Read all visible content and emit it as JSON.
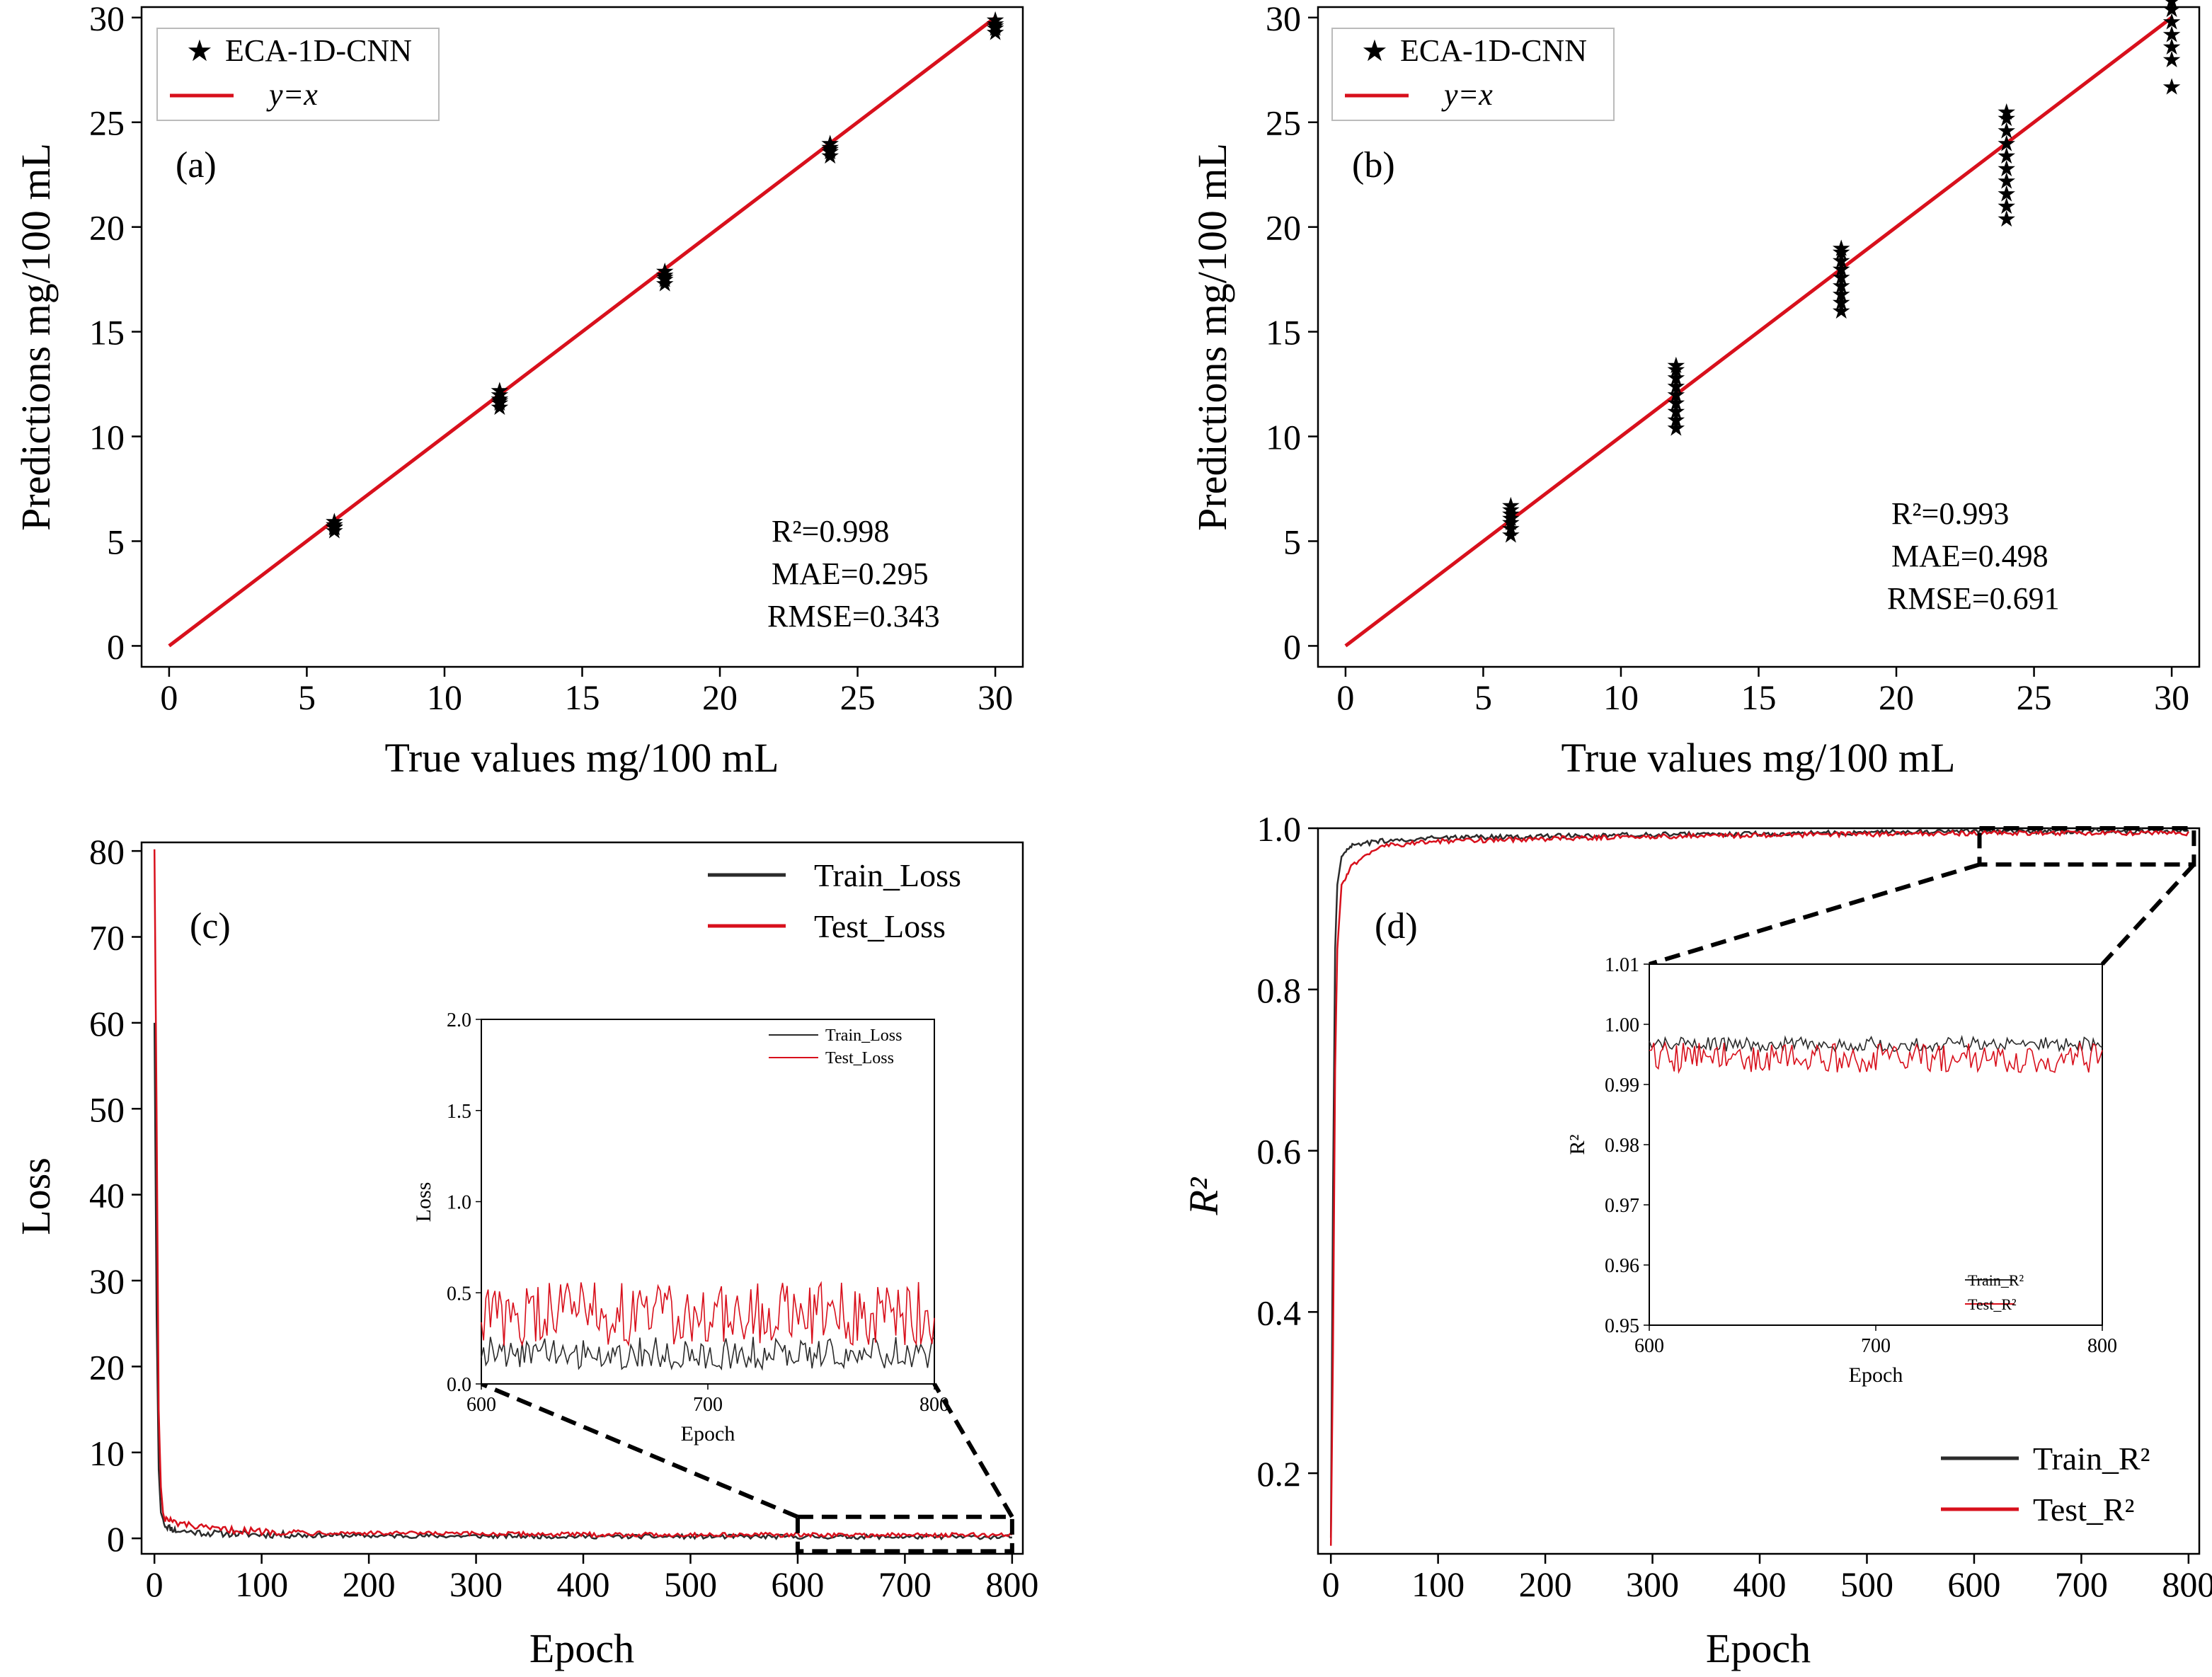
{
  "colors": {
    "scatter": "#1a7a3a",
    "identity": "#d8101c",
    "train": "#2b2b2b",
    "test": "#d8101c"
  },
  "panels": {
    "a": {
      "label": "(a)",
      "xlabel": "True values mg/100 mL",
      "ylabel": "Predictions mg/100 mL",
      "legend": {
        "scatter": "ECA-1D-CNN",
        "line": "y=x"
      },
      "stats": {
        "r2": "R²=0.998",
        "mae": "MAE=0.295",
        "rmse": "RMSE=0.343"
      }
    },
    "b": {
      "label": "(b)",
      "xlabel": "True values mg/100 mL",
      "ylabel": "Predictions mg/100 mL",
      "legend": {
        "scatter": "ECA-1D-CNN",
        "line": "y=x"
      },
      "stats": {
        "r2": "R²=0.993",
        "mae": "MAE=0.498",
        "rmse": "RMSE=0.691"
      }
    },
    "c": {
      "label": "(c)",
      "xlabel": "Epoch",
      "ylabel": "Loss",
      "legend": {
        "train": "Train_Loss",
        "test": "Test_Loss"
      },
      "inset": {
        "xlabel": "Epoch",
        "ylabel": "Loss",
        "legend": {
          "train": "Train_Loss",
          "test": "Test_Loss"
        }
      }
    },
    "d": {
      "label": "(d)",
      "xlabel": "Epoch",
      "ylabel": "R²",
      "legend": {
        "train": "Train_R²",
        "test": "Test_R²"
      },
      "inset": {
        "xlabel": "Epoch",
        "ylabel": "R²",
        "legend": {
          "train": "Train_R²",
          "test": "Test_R²"
        }
      }
    }
  },
  "chart_data": [
    {
      "type": "scatter",
      "panel": "a",
      "xlim": [
        -1,
        31
      ],
      "ylim": [
        -1,
        30.5
      ],
      "xticks": [
        0,
        5,
        10,
        15,
        20,
        25,
        30
      ],
      "yticks": [
        0,
        5,
        10,
        15,
        20,
        25,
        30
      ],
      "series": [
        {
          "name": "ECA-1D-CNN",
          "kind": "points",
          "points": [
            [
              6,
              5.5
            ],
            [
              6,
              5.65
            ],
            [
              6,
              5.8
            ],
            [
              6,
              5.95
            ],
            [
              6,
              5.7
            ],
            [
              12,
              11.4
            ],
            [
              12,
              11.6
            ],
            [
              12,
              11.8
            ],
            [
              12,
              12.0
            ],
            [
              12,
              12.2
            ],
            [
              12,
              11.7
            ],
            [
              18,
              17.3
            ],
            [
              18,
              17.5
            ],
            [
              18,
              17.7
            ],
            [
              18,
              17.9
            ],
            [
              18,
              17.6
            ],
            [
              24,
              23.4
            ],
            [
              24,
              23.6
            ],
            [
              24,
              23.8
            ],
            [
              24,
              24.0
            ],
            [
              24,
              23.7
            ],
            [
              30,
              29.3
            ],
            [
              30,
              29.5
            ],
            [
              30,
              29.7
            ],
            [
              30,
              29.9
            ],
            [
              30,
              29.6
            ]
          ]
        },
        {
          "name": "y=x",
          "kind": "line",
          "points": [
            [
              0,
              0
            ],
            [
              30,
              30
            ]
          ]
        }
      ]
    },
    {
      "type": "scatter",
      "panel": "b",
      "xlim": [
        -1,
        31
      ],
      "ylim": [
        -1,
        30.5
      ],
      "xticks": [
        0,
        5,
        10,
        15,
        20,
        25,
        30
      ],
      "yticks": [
        0,
        5,
        10,
        15,
        20,
        25,
        30
      ],
      "series": [
        {
          "name": "ECA-1D-CNN",
          "kind": "points",
          "points": [
            [
              6,
              5.3
            ],
            [
              6,
              5.6
            ],
            [
              6,
              5.9
            ],
            [
              6,
              6.1
            ],
            [
              6,
              6.3
            ],
            [
              6,
              6.5
            ],
            [
              6,
              6.7
            ],
            [
              12,
              10.4
            ],
            [
              12,
              10.8
            ],
            [
              12,
              11.2
            ],
            [
              12,
              11.6
            ],
            [
              12,
              12.0
            ],
            [
              12,
              12.4
            ],
            [
              12,
              12.8
            ],
            [
              12,
              13.2
            ],
            [
              12,
              13.4
            ],
            [
              18,
              16.0
            ],
            [
              18,
              16.4
            ],
            [
              18,
              16.8
            ],
            [
              18,
              17.2
            ],
            [
              18,
              17.6
            ],
            [
              18,
              18.0
            ],
            [
              18,
              18.4
            ],
            [
              18,
              18.8
            ],
            [
              18,
              19.0
            ],
            [
              24,
              20.4
            ],
            [
              24,
              21.0
            ],
            [
              24,
              21.6
            ],
            [
              24,
              22.2
            ],
            [
              24,
              22.8
            ],
            [
              24,
              23.4
            ],
            [
              24,
              24.0
            ],
            [
              24,
              24.6
            ],
            [
              24,
              25.2
            ],
            [
              24,
              25.5
            ],
            [
              30,
              26.7
            ],
            [
              30,
              28.0
            ],
            [
              30,
              28.6
            ],
            [
              30,
              29.2
            ],
            [
              30,
              29.8
            ],
            [
              30,
              30.4
            ],
            [
              30,
              30.8
            ]
          ]
        },
        {
          "name": "y=x",
          "kind": "line",
          "points": [
            [
              0,
              0
            ],
            [
              30,
              30
            ]
          ]
        }
      ]
    },
    {
      "type": "line",
      "panel": "c",
      "xlim": [
        -12,
        810
      ],
      "ylim": [
        -1.8,
        81
      ],
      "xticks": [
        0,
        100,
        200,
        300,
        400,
        500,
        600,
        700,
        800
      ],
      "yticks": [
        0,
        10,
        20,
        30,
        40,
        50,
        60,
        70,
        80
      ],
      "series": [
        {
          "name": "Train_Loss",
          "points": [
            [
              0,
              60
            ],
            [
              2,
              26
            ],
            [
              4,
              8
            ],
            [
              6,
              3
            ],
            [
              10,
              1.5
            ],
            [
              20,
              0.9
            ],
            [
              50,
              0.6
            ],
            [
              100,
              0.45
            ],
            [
              200,
              0.3
            ],
            [
              400,
              0.22
            ],
            [
              600,
              0.18
            ],
            [
              800,
              0.16
            ]
          ]
        },
        {
          "name": "Test_Loss",
          "points": [
            [
              0,
              80.2
            ],
            [
              2,
              50
            ],
            [
              4,
              15
            ],
            [
              6,
              6
            ],
            [
              8,
              3
            ],
            [
              10,
              2.3
            ],
            [
              20,
              1.8
            ],
            [
              50,
              1.1
            ],
            [
              100,
              0.8
            ],
            [
              200,
              0.6
            ],
            [
              400,
              0.45
            ],
            [
              600,
              0.4
            ],
            [
              800,
              0.38
            ]
          ]
        }
      ],
      "zoom_box": {
        "x": [
          600,
          800
        ],
        "y": [
          -1.5,
          2.5
        ]
      },
      "inset": {
        "xlim": [
          600,
          800
        ],
        "ylim": [
          0,
          2.0
        ],
        "xticks": [
          600,
          700,
          800
        ],
        "yticks": [
          0.0,
          0.5,
          1.0,
          1.5,
          2.0
        ],
        "series": [
          {
            "name": "Train_Loss",
            "mean": 0.17,
            "amplitude": 0.09
          },
          {
            "name": "Test_Loss",
            "mean": 0.38,
            "amplitude": 0.18
          }
        ]
      }
    },
    {
      "type": "line",
      "panel": "d",
      "xlim": [
        -12,
        810
      ],
      "ylim": [
        0.1,
        1.0
      ],
      "xticks": [
        0,
        100,
        200,
        300,
        400,
        500,
        600,
        700,
        800
      ],
      "yticks": [
        0.2,
        0.4,
        0.6,
        0.8,
        1.0
      ],
      "series": [
        {
          "name": "Train_R²",
          "points": [
            [
              0,
              0.12
            ],
            [
              2,
              0.55
            ],
            [
              4,
              0.85
            ],
            [
              6,
              0.93
            ],
            [
              10,
              0.965
            ],
            [
              20,
              0.978
            ],
            [
              50,
              0.985
            ],
            [
              100,
              0.988
            ],
            [
              300,
              0.992
            ],
            [
              600,
              0.996
            ],
            [
              800,
              0.997
            ]
          ]
        },
        {
          "name": "Test_R²",
          "points": [
            [
              0,
              0.11
            ],
            [
              2,
              0.35
            ],
            [
              4,
              0.7
            ],
            [
              6,
              0.85
            ],
            [
              10,
              0.93
            ],
            [
              20,
              0.955
            ],
            [
              50,
              0.978
            ],
            [
              100,
              0.984
            ],
            [
              300,
              0.99
            ],
            [
              600,
              0.994
            ],
            [
              800,
              0.994
            ]
          ]
        }
      ],
      "zoom_box": {
        "x": [
          605,
          805
        ],
        "y": [
          0.955,
          1.0
        ]
      },
      "inset": {
        "xlim": [
          600,
          800
        ],
        "ylim": [
          0.95,
          1.01
        ],
        "xticks": [
          600,
          700,
          800
        ],
        "yticks": [
          0.95,
          0.96,
          0.97,
          0.98,
          0.99,
          1.0,
          1.01
        ],
        "series": [
          {
            "name": "Train_R²",
            "mean": 0.9967,
            "amplitude": 0.0012
          },
          {
            "name": "Test_R²",
            "mean": 0.9945,
            "amplitude": 0.0025
          }
        ]
      }
    }
  ]
}
